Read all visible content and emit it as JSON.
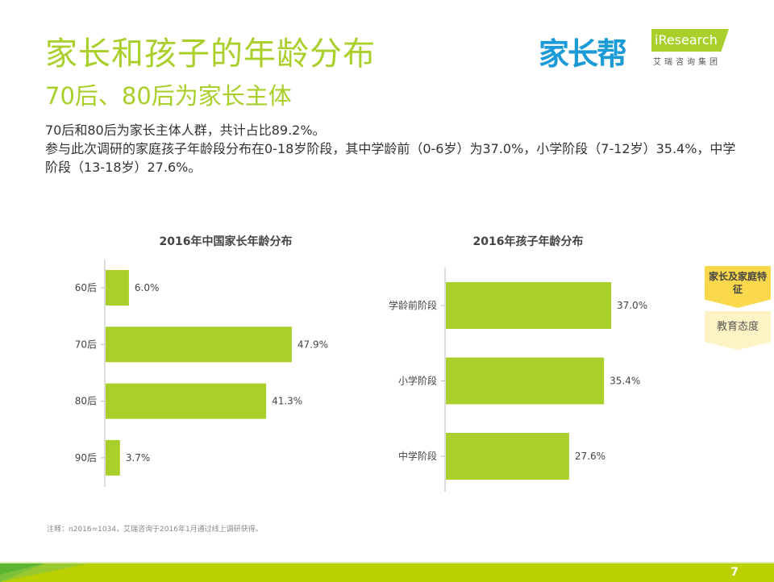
{
  "header": {
    "title": "家长和孩子的年龄分布",
    "subtitle": "70后、80后为家长主体",
    "summary_line1": "70后和80后为家长主体人群，共计占比89.2%。",
    "summary_line2": "参与此次调研的家庭孩子年龄段分布在0-18岁阶段，其中学龄前（0-6岁）为37.0%，小学阶段（7-12岁）35.4%，中学阶段（13-18岁）27.6%。"
  },
  "logo": {
    "brand": "家长帮",
    "partner": "iResearch",
    "partner_sub": "艾瑞咨询集团"
  },
  "side_nav": [
    {
      "label": "家长及家庭特征",
      "active": true
    },
    {
      "label": "教育态度",
      "active": false
    }
  ],
  "note": "注释：n2016=1034，艾瑞咨询于2016年1月通过线上调研获得。",
  "page_number": "7",
  "colors": {
    "accent": "#a9cf2a",
    "bar": "#a9cf2a"
  },
  "chart_data": [
    {
      "type": "bar",
      "orientation": "horizontal",
      "title": "2016年中国家长年龄分布",
      "categories": [
        "60后",
        "70后",
        "80后",
        "90后"
      ],
      "values": [
        6.0,
        47.9,
        41.3,
        3.7
      ],
      "labels": [
        "6.0%",
        "47.9%",
        "41.3%",
        "3.7%"
      ],
      "unit": "%"
    },
    {
      "type": "bar",
      "orientation": "horizontal",
      "title": "2016年孩子年龄分布",
      "categories": [
        "学龄前阶段",
        "小学阶段",
        "中学阶段"
      ],
      "values": [
        37.0,
        35.4,
        27.6
      ],
      "labels": [
        "37.0%",
        "35.4%",
        "27.6%"
      ],
      "unit": "%"
    }
  ]
}
